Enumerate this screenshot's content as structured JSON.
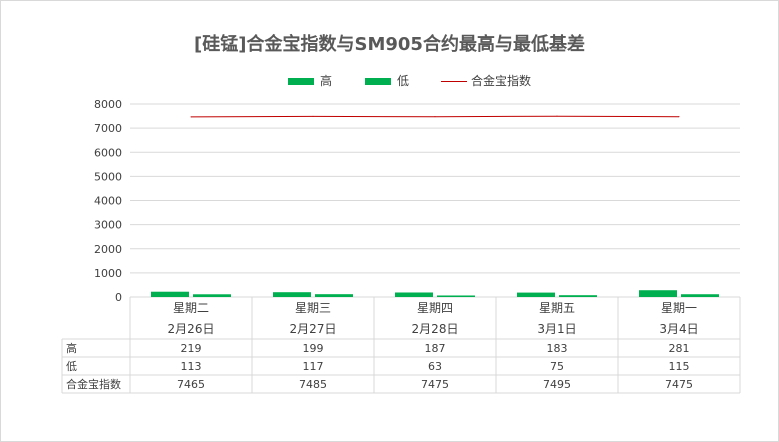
{
  "chart_data": {
    "type": "bar",
    "title": "[硅锰]合金宝指数与SM905合约最高与最低基差",
    "categories": [
      {
        "weekday": "星期二",
        "date": "2月26日"
      },
      {
        "weekday": "星期三",
        "date": "2月27日"
      },
      {
        "weekday": "星期四",
        "date": "2月28日"
      },
      {
        "weekday": "星期五",
        "date": "3月1日"
      },
      {
        "weekday": "星期一",
        "date": "3月4日"
      }
    ],
    "series": [
      {
        "name": "高",
        "type": "bar",
        "color": "#00b050",
        "values": [
          219,
          199,
          187,
          183,
          281
        ]
      },
      {
        "name": "低",
        "type": "bar",
        "color": "#00b050",
        "values": [
          113,
          117,
          63,
          75,
          115
        ]
      },
      {
        "name": "合金宝指数",
        "type": "line",
        "color": "#c00000",
        "values": [
          7465,
          7485,
          7475,
          7495,
          7475
        ]
      }
    ],
    "ylim": [
      0,
      8000
    ],
    "yticks": [
      "0",
      "1000",
      "2000",
      "3000",
      "4000",
      "5000",
      "6000",
      "7000",
      "8000"
    ],
    "grid": true,
    "legend": "top",
    "data_table": true
  }
}
